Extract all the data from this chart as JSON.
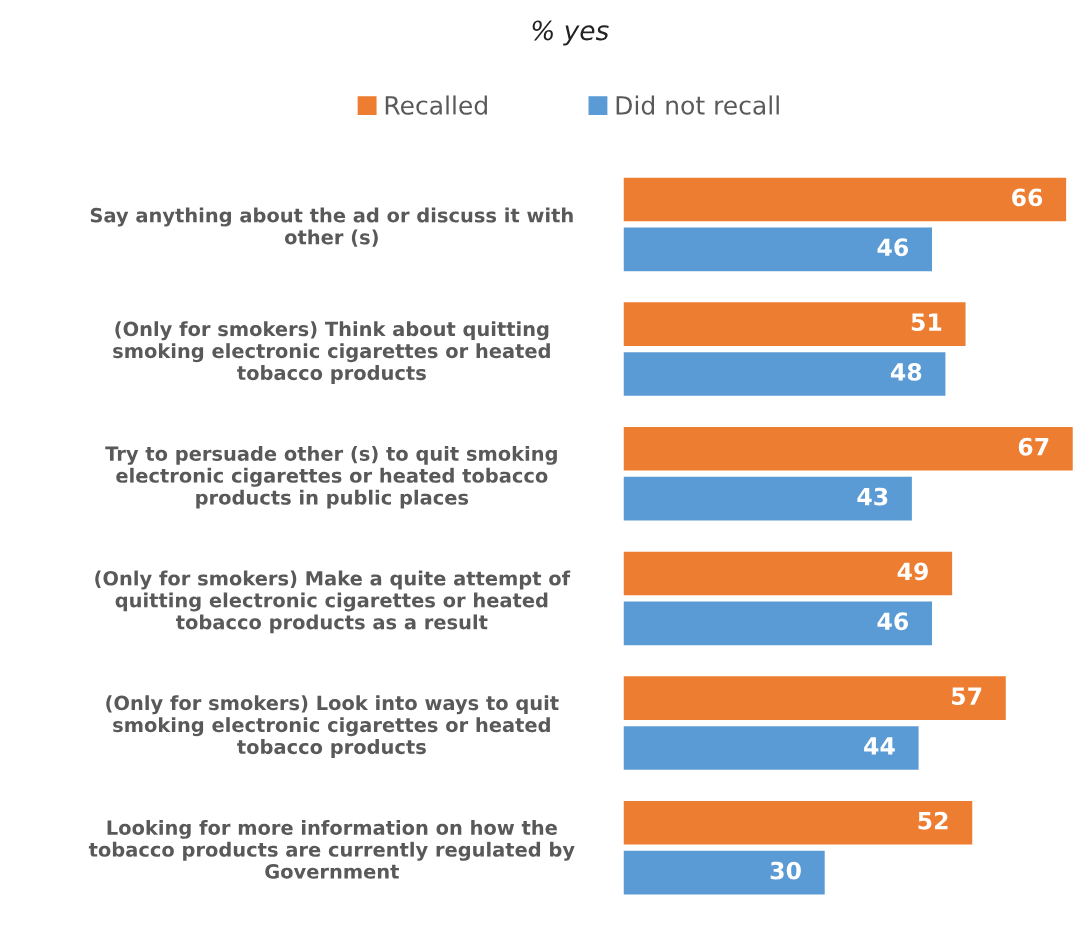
{
  "chart_data": {
    "type": "bar",
    "orientation": "horizontal",
    "title": "% yes",
    "legend": "top",
    "data_labels": true,
    "categories": [
      "Say anything about the ad or discuss it with\nother (s)",
      "(Only for smokers) Think about quitting\nsmoking electronic cigarettes or heated\ntobacco products",
      "Try to persuade other (s) to quit smoking\nelectronic cigarettes or heated tobacco\nproducts in public places",
      "(Only for smokers) Make a quite attempt of\nquitting electronic cigarettes or heated\ntobacco products as a result",
      "(Only for smokers) Look into ways to quit\nsmoking electronic cigarettes or heated\ntobacco products",
      "Looking for more information on how the\ntobacco products are currently regulated by\nGovernment"
    ],
    "series": [
      {
        "name": "Recalled",
        "color": "#ed7d31",
        "values": [
          66,
          51,
          67,
          49,
          57,
          52
        ]
      },
      {
        "name": "Did not recall",
        "color": "#5b9bd5",
        "values": [
          46,
          48,
          43,
          46,
          44,
          30
        ]
      }
    ]
  }
}
